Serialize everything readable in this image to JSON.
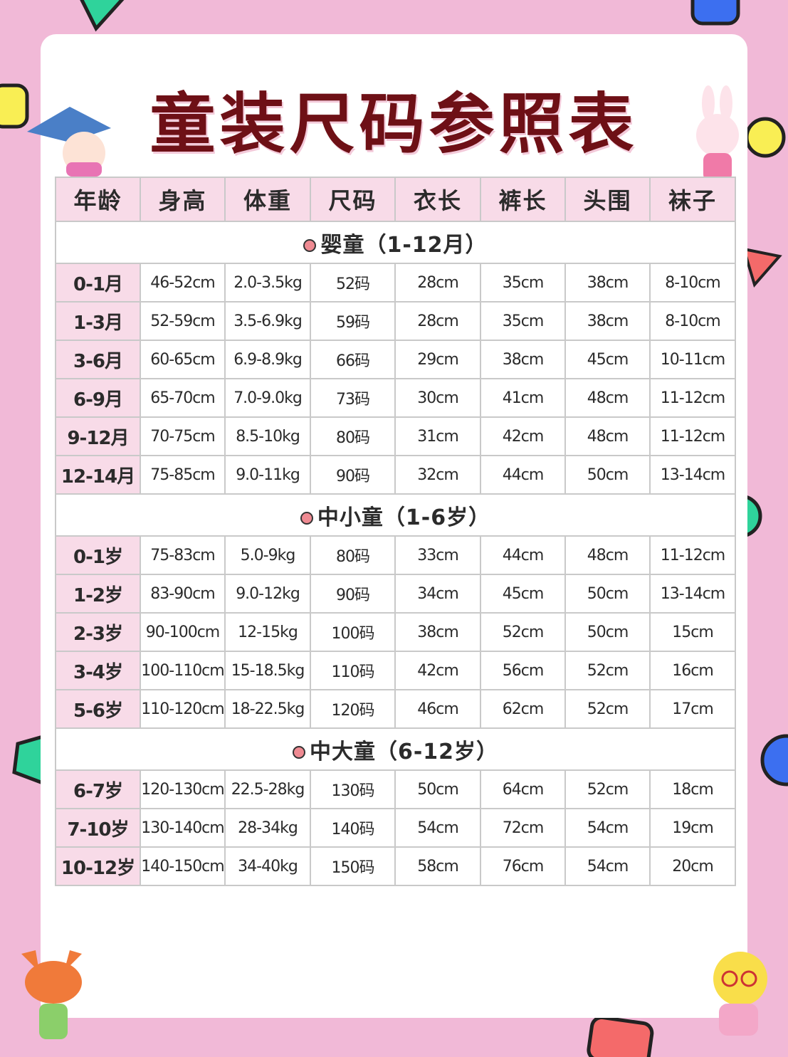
{
  "title": "童装尺码参照表",
  "colors": {
    "background": "#f1b9d7",
    "title": "#6e1016",
    "header_fill": "#f8dbe8",
    "dot": "#ef8a92"
  },
  "columns": [
    "年龄",
    "身高",
    "体重",
    "尺码",
    "衣长",
    "裤长",
    "头围",
    "袜子"
  ],
  "sections": [
    {
      "label": "婴童（1-12月）",
      "rows": [
        [
          "0-1月",
          "46-52cm",
          "2.0-3.5kg",
          "52码",
          "28cm",
          "35cm",
          "38cm",
          "8-10cm"
        ],
        [
          "1-3月",
          "52-59cm",
          "3.5-6.9kg",
          "59码",
          "28cm",
          "35cm",
          "38cm",
          "8-10cm"
        ],
        [
          "3-6月",
          "60-65cm",
          "6.9-8.9kg",
          "66码",
          "29cm",
          "38cm",
          "45cm",
          "10-11cm"
        ],
        [
          "6-9月",
          "65-70cm",
          "7.0-9.0kg",
          "73码",
          "30cm",
          "41cm",
          "48cm",
          "11-12cm"
        ],
        [
          "9-12月",
          "70-75cm",
          "8.5-10kg",
          "80码",
          "31cm",
          "42cm",
          "48cm",
          "11-12cm"
        ],
        [
          "12-14月",
          "75-85cm",
          "9.0-11kg",
          "90码",
          "32cm",
          "44cm",
          "50cm",
          "13-14cm"
        ]
      ]
    },
    {
      "label": "中小童（1-6岁）",
      "rows": [
        [
          "0-1岁",
          "75-83cm",
          "5.0-9kg",
          "80码",
          "33cm",
          "44cm",
          "48cm",
          "11-12cm"
        ],
        [
          "1-2岁",
          "83-90cm",
          "9.0-12kg",
          "90码",
          "34cm",
          "45cm",
          "50cm",
          "13-14cm"
        ],
        [
          "2-3岁",
          "90-100cm",
          "12-15kg",
          "100码",
          "38cm",
          "52cm",
          "50cm",
          "15cm"
        ],
        [
          "3-4岁",
          "100-110cm",
          "15-18.5kg",
          "110码",
          "42cm",
          "56cm",
          "52cm",
          "16cm"
        ],
        [
          "5-6岁",
          "110-120cm",
          "18-22.5kg",
          "120码",
          "46cm",
          "62cm",
          "52cm",
          "17cm"
        ]
      ]
    },
    {
      "label": "中大童（6-12岁）",
      "rows": [
        [
          "6-7岁",
          "120-130cm",
          "22.5-28kg",
          "130码",
          "50cm",
          "64cm",
          "52cm",
          "18cm"
        ],
        [
          "7-10岁",
          "130-140cm",
          "28-34kg",
          "140码",
          "54cm",
          "72cm",
          "54cm",
          "19cm"
        ],
        [
          "10-12岁",
          "140-150cm",
          "34-40kg",
          "150码",
          "58cm",
          "76cm",
          "54cm",
          "20cm"
        ]
      ]
    }
  ],
  "decorations": [
    "triangle-shape",
    "circle-shape",
    "girl-mascot",
    "bunny-mascot",
    "fox-mascot",
    "chick-mascot"
  ]
}
